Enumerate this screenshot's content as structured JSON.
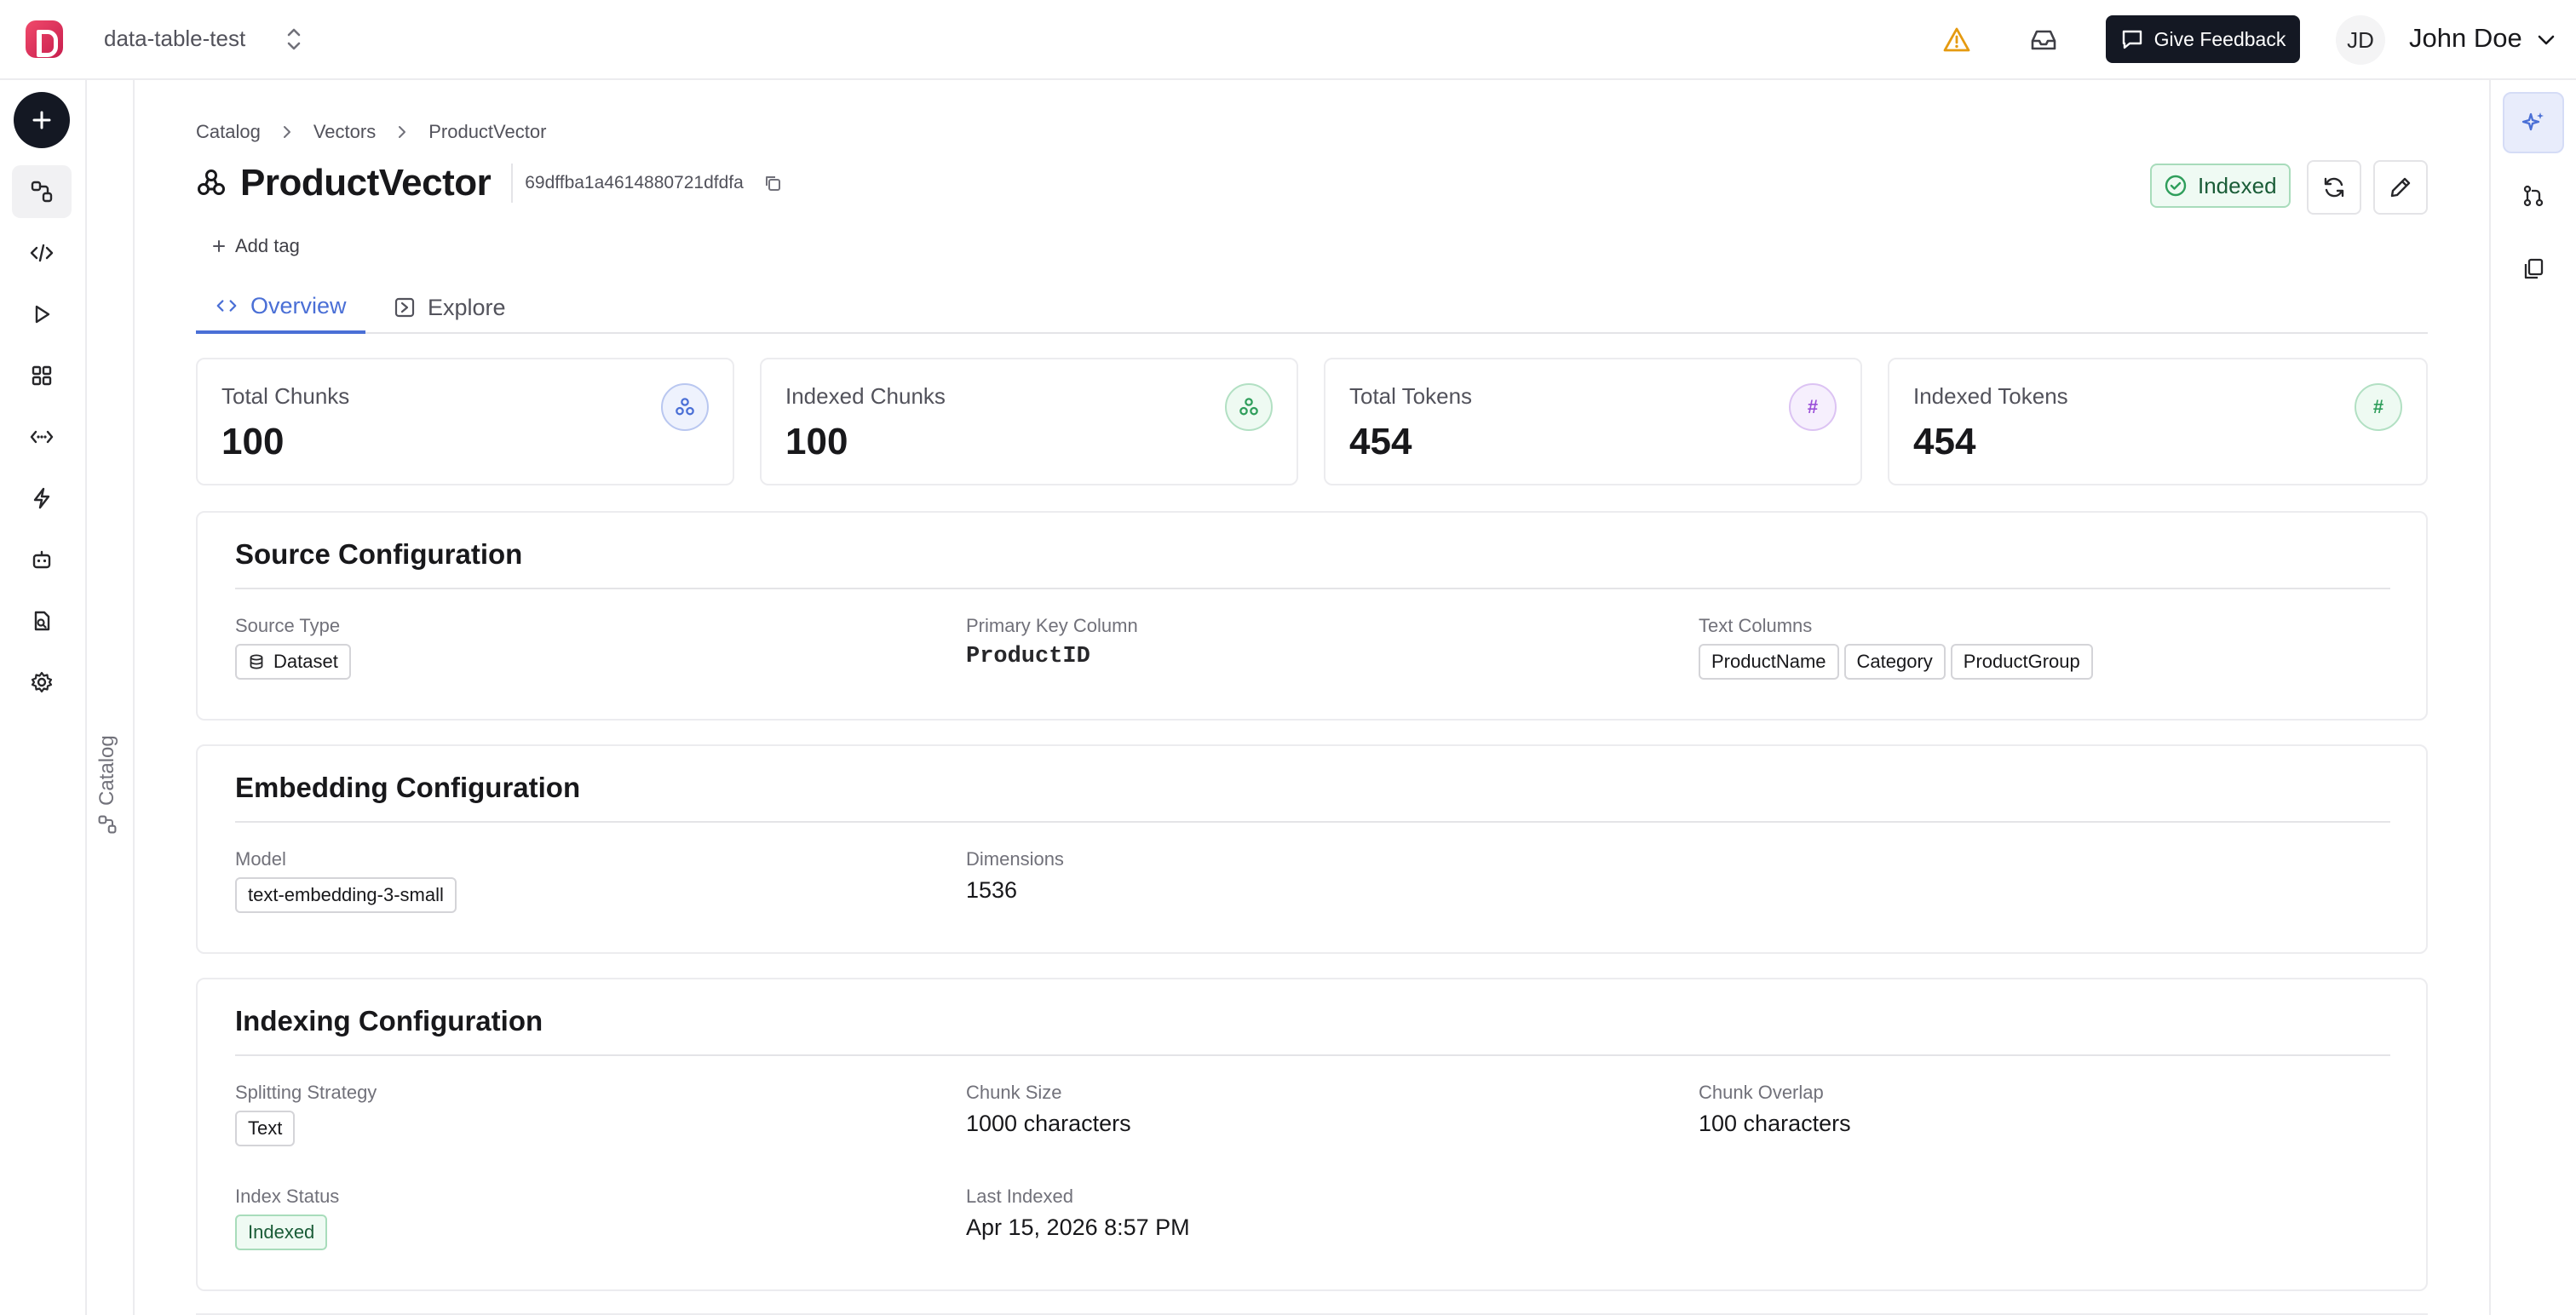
{
  "header": {
    "project_name": "data-table-test",
    "feedback_label": "Give Feedback",
    "user_initials": "JD",
    "user_name": "John Doe"
  },
  "icons": {
    "logo": "app-logo",
    "project_switcher": "chevrons-up-down-icon",
    "warning": "warning-triangle-icon",
    "inbox": "inbox-icon",
    "feedback": "message-square-icon",
    "user_menu": "chevron-down-icon"
  },
  "left_rail": {
    "items": [
      "plus-icon",
      "catalog-icon",
      "code-icon",
      "play-icon",
      "grid-icon",
      "code-arrows-icon",
      "lightning-icon",
      "bot-icon",
      "file-search-icon",
      "gear-icon"
    ],
    "active": "catalog-icon"
  },
  "catalog_panel": {
    "label": "Catalog"
  },
  "right_rail": {
    "items": [
      "sparkles-icon",
      "git-pull-request-icon",
      "copy-stack-icon"
    ],
    "active": "sparkles-icon"
  },
  "breadcrumb": [
    "Catalog",
    "Vectors",
    "ProductVector"
  ],
  "page": {
    "title": "ProductVector",
    "id": "69dffba1a4614880721dfdfa",
    "status": "Indexed",
    "add_tag": "Add tag"
  },
  "tabs": [
    {
      "label": "Overview",
      "active": true
    },
    {
      "label": "Explore",
      "active": false
    }
  ],
  "stats": [
    {
      "label": "Total Chunks",
      "value": "100",
      "icon": "network-icon",
      "color": "#4a6fd6",
      "bg": "#eef2fd",
      "border": "#b9c7f0"
    },
    {
      "label": "Indexed Chunks",
      "value": "100",
      "icon": "network-icon",
      "color": "#2f9e5b",
      "bg": "#eefaf2",
      "border": "#b2e0c3"
    },
    {
      "label": "Total Tokens",
      "value": "454",
      "icon": "hash-icon",
      "color": "#9b4fd8",
      "bg": "#f6effd",
      "border": "#dcc3f3"
    },
    {
      "label": "Indexed Tokens",
      "value": "454",
      "icon": "hash-icon",
      "color": "#2f9e5b",
      "bg": "#eefaf2",
      "border": "#b2e0c3"
    }
  ],
  "source_config": {
    "title": "Source Configuration",
    "source_type_label": "Source Type",
    "source_type_value": "Dataset",
    "primary_key_label": "Primary Key Column",
    "primary_key_value": "ProductID",
    "text_columns_label": "Text Columns",
    "text_columns": [
      "ProductName",
      "Category",
      "ProductGroup"
    ]
  },
  "embedding_config": {
    "title": "Embedding Configuration",
    "model_label": "Model",
    "model_value": "text-embedding-3-small",
    "dimensions_label": "Dimensions",
    "dimensions_value": "1536"
  },
  "indexing_config": {
    "title": "Indexing Configuration",
    "splitting_label": "Splitting Strategy",
    "splitting_value": "Text",
    "chunk_size_label": "Chunk Size",
    "chunk_size_value": "1000 characters",
    "chunk_overlap_label": "Chunk Overlap",
    "chunk_overlap_value": "100 characters",
    "index_status_label": "Index Status",
    "index_status_value": "Indexed",
    "last_indexed_label": "Last Indexed",
    "last_indexed_value": "Apr 15, 2026 8:57 PM"
  },
  "colors": {
    "accent": "#4a6fd6",
    "success": "#2f9e5b",
    "warning": "#e59a10",
    "dark_button": "#141823"
  }
}
